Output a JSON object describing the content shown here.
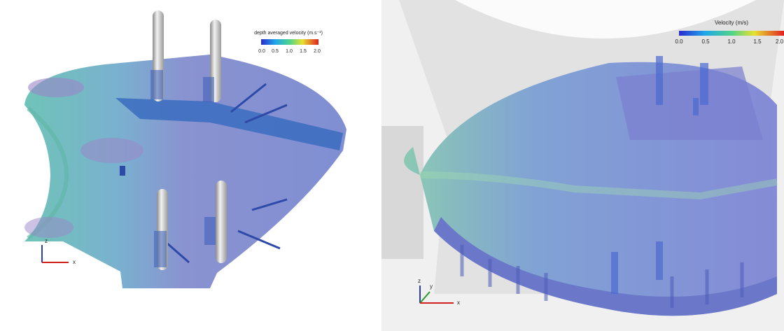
{
  "left_panel": {
    "legend": {
      "title": "depth averaged velocity (m.s⁻¹)",
      "ticks": [
        "0.0",
        "0.5",
        "1.0",
        "1.5",
        "2.0"
      ]
    },
    "axes": {
      "z": "z",
      "x": "x"
    }
  },
  "right_panel": {
    "legend": {
      "title": "Velocity (m/s)",
      "ticks": [
        "0.0",
        "0.5",
        "1.0",
        "1.5",
        "2.0"
      ]
    },
    "axes": {
      "z": "z",
      "y": "y",
      "x": "x"
    }
  }
}
